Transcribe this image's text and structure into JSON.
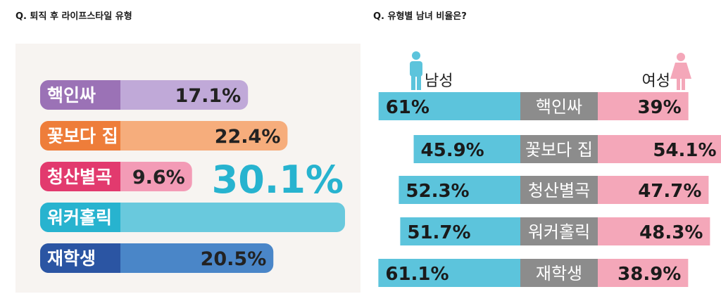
{
  "left_panel": {
    "title": "Q. 퇴직 후 라이프스타일 유형"
  },
  "right_panel": {
    "title": "Q. 유형별 남녀 비율은?",
    "male_label": "남성",
    "female_label": "여성"
  },
  "colors": {
    "male": "#5cc4dc",
    "female": "#f4a7b9",
    "category_gray": "#8c8c8c",
    "background_panel": "#f7f4f1"
  },
  "chart_data": [
    {
      "type": "bar",
      "orientation": "horizontal",
      "title": "Q. 퇴직 후 라이프스타일 유형",
      "categories": [
        "핵인싸",
        "꽃보다 집",
        "청산별곡",
        "워커홀릭",
        "재학생"
      ],
      "values": [
        17.1,
        22.4,
        9.6,
        30.1,
        20.5
      ],
      "value_labels": [
        "17.1%",
        "22.4%",
        "9.6%",
        "30.1%",
        "20.5%"
      ],
      "bar_colors_dark": [
        "#9b72b6",
        "#ee7d3a",
        "#e23a6e",
        "#27b3cf",
        "#2b55a3"
      ],
      "bar_colors_light": [
        "#c0a9d8",
        "#f6ad7c",
        "#f39bb6",
        "#69c9dd",
        "#4a86c8"
      ],
      "unit": "%"
    },
    {
      "type": "bar",
      "orientation": "horizontal",
      "stacked": true,
      "title": "Q. 유형별 남녀 비율은?",
      "categories": [
        "핵인싸",
        "꽃보다 집",
        "청산별곡",
        "워커홀릭",
        "재학생"
      ],
      "series": [
        {
          "name": "남성",
          "values": [
            61,
            45.9,
            52.3,
            51.7,
            61.1
          ],
          "labels": [
            "61%",
            "45.9%",
            "52.3%",
            "51.7%",
            "61.1%"
          ]
        },
        {
          "name": "여성",
          "values": [
            39,
            54.1,
            47.7,
            48.3,
            38.9
          ],
          "labels": [
            "39%",
            "54.1%",
            "47.7%",
            "48.3%",
            "38.9%"
          ]
        }
      ],
      "unit": "%"
    }
  ]
}
